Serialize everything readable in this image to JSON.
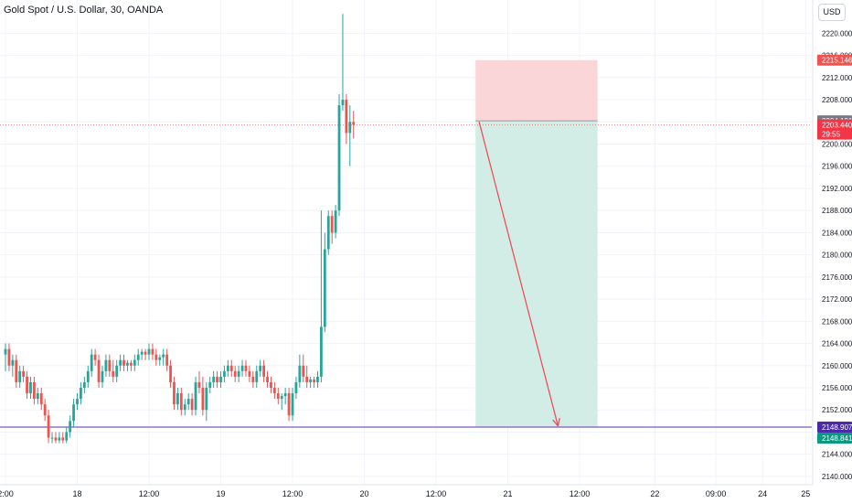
{
  "header": {
    "title": "Gold Spot / U.S. Dollar, 30, OANDA",
    "currency": "USD"
  },
  "colors": {
    "up": "#26a69a",
    "down": "#ef5350",
    "stop_zone": "#fbd6d8",
    "target_zone": "#d2ede6",
    "entry_line": "#9598a1",
    "target_line": "#7e57c2",
    "arrow": "#f0505a",
    "grid": "#f0f3fa"
  },
  "chart_data": {
    "type": "candlestick",
    "title": "Gold Spot / U.S. Dollar, 30, OANDA",
    "ylim": [
      2138.5,
      2226
    ],
    "y_ticks": [
      2140,
      2144,
      2148,
      2152,
      2156,
      2160,
      2164,
      2168,
      2172,
      2176,
      2180,
      2184,
      2188,
      2192,
      2196,
      2200,
      2204,
      2208,
      2212,
      2216,
      2220
    ],
    "y_tick_labels": [
      "2140.000",
      "2144.000",
      "2148.000",
      "2152.000",
      "2156.000",
      "2160.000",
      "2164.000",
      "2168.000",
      "2172.000",
      "2176.000",
      "2180.000",
      "2184.000",
      "2188.000",
      "2192.000",
      "2196.000",
      "2200.000",
      "2204.000",
      "2208.000",
      "2212.000",
      "2216.000",
      "2220.000"
    ],
    "x_ticks": [
      {
        "label": "2:00",
        "bar": 0
      },
      {
        "label": "18",
        "bar": 20
      },
      {
        "label": "12:00",
        "bar": 40
      },
      {
        "label": "19",
        "bar": 60
      },
      {
        "label": "12:00",
        "bar": 80
      },
      {
        "label": "20",
        "bar": 100
      },
      {
        "label": "12:00",
        "bar": 120
      },
      {
        "label": "21",
        "bar": 140
      },
      {
        "label": "12:00",
        "bar": 160
      },
      {
        "label": "22",
        "bar": 181
      },
      {
        "label": "09:00",
        "bar": 198
      },
      {
        "label": "24",
        "bar": 211
      },
      {
        "label": "25",
        "bar": 223
      }
    ],
    "candles": [
      [
        2162,
        2164,
        2159,
        2163
      ],
      [
        2163,
        2164,
        2159,
        2160
      ],
      [
        2160,
        2162,
        2158,
        2161
      ],
      [
        2161,
        2162,
        2156,
        2157
      ],
      [
        2157,
        2160,
        2156,
        2159
      ],
      [
        2159,
        2160,
        2157,
        2158
      ],
      [
        2158,
        2159,
        2154,
        2155
      ],
      [
        2155,
        2158,
        2154,
        2157
      ],
      [
        2157,
        2158,
        2153,
        2154
      ],
      [
        2154,
        2156,
        2153,
        2155
      ],
      [
        2155,
        2156,
        2152,
        2153
      ],
      [
        2153,
        2154,
        2150,
        2151
      ],
      [
        2151,
        2152,
        2146,
        2147
      ],
      [
        2147,
        2148,
        2146,
        2147
      ],
      [
        2147,
        2148,
        2146,
        2146.5
      ],
      [
        2146.5,
        2148,
        2146,
        2147
      ],
      [
        2147,
        2148,
        2146,
        2146.5
      ],
      [
        2146.5,
        2149,
        2146,
        2148
      ],
      [
        2148,
        2151,
        2147,
        2150
      ],
      [
        2150,
        2154,
        2149,
        2153
      ],
      [
        2153,
        2155,
        2152,
        2154
      ],
      [
        2154,
        2157,
        2153,
        2156
      ],
      [
        2156,
        2158,
        2155,
        2157
      ],
      [
        2157,
        2160,
        2156,
        2159
      ],
      [
        2159,
        2163,
        2158,
        2162
      ],
      [
        2162,
        2163,
        2160,
        2161
      ],
      [
        2161,
        2162,
        2156,
        2157
      ],
      [
        2157,
        2160,
        2156,
        2159
      ],
      [
        2159,
        2162,
        2158,
        2161
      ],
      [
        2161,
        2162,
        2158,
        2159
      ],
      [
        2159,
        2161,
        2157,
        2158
      ],
      [
        2158,
        2161,
        2157,
        2160
      ],
      [
        2160,
        2162,
        2159,
        2161
      ],
      [
        2161,
        2162,
        2159,
        2160
      ],
      [
        2160,
        2161,
        2159,
        2160.5
      ],
      [
        2160.5,
        2161,
        2159,
        2160
      ],
      [
        2160,
        2162,
        2159,
        2161
      ],
      [
        2161,
        2163,
        2160,
        2162
      ],
      [
        2162,
        2163,
        2161,
        2162.5
      ],
      [
        2162.5,
        2163,
        2161,
        2162
      ],
      [
        2162,
        2164,
        2161,
        2163
      ],
      [
        2163,
        2164,
        2161,
        2162
      ],
      [
        2162,
        2163,
        2160,
        2161
      ],
      [
        2161,
        2162,
        2160,
        2161.5
      ],
      [
        2161.5,
        2163,
        2160,
        2162
      ],
      [
        2162,
        2163,
        2159,
        2160
      ],
      [
        2160,
        2161,
        2156,
        2157
      ],
      [
        2157,
        2158,
        2152,
        2153
      ],
      [
        2153,
        2156,
        2152,
        2155
      ],
      [
        2155,
        2156,
        2151,
        2152
      ],
      [
        2152,
        2154,
        2151,
        2153
      ],
      [
        2153,
        2155,
        2152,
        2154
      ],
      [
        2154,
        2155,
        2151,
        2152
      ],
      [
        2152,
        2158,
        2151,
        2157
      ],
      [
        2157,
        2159,
        2155,
        2156
      ],
      [
        2156,
        2158,
        2151,
        2152
      ],
      [
        2152,
        2157,
        2150,
        2156
      ],
      [
        2156,
        2158,
        2155,
        2157
      ],
      [
        2157,
        2159,
        2156,
        2158
      ],
      [
        2158,
        2159,
        2156,
        2157
      ],
      [
        2157,
        2159,
        2156,
        2158
      ],
      [
        2158,
        2160,
        2157,
        2159
      ],
      [
        2159,
        2161,
        2158,
        2160
      ],
      [
        2160,
        2161,
        2158,
        2159
      ],
      [
        2159,
        2160,
        2157,
        2158
      ],
      [
        2158,
        2160,
        2157,
        2159
      ],
      [
        2159,
        2161,
        2158,
        2160
      ],
      [
        2160,
        2161,
        2158,
        2159
      ],
      [
        2159,
        2160,
        2157,
        2158
      ],
      [
        2158,
        2159,
        2156,
        2157
      ],
      [
        2157,
        2160,
        2156,
        2159
      ],
      [
        2159,
        2161,
        2158,
        2160
      ],
      [
        2160,
        2161,
        2157,
        2158
      ],
      [
        2158,
        2159,
        2156,
        2157
      ],
      [
        2157,
        2158,
        2155,
        2156
      ],
      [
        2156,
        2157,
        2154,
        2155
      ],
      [
        2155,
        2156,
        2153,
        2154
      ],
      [
        2154,
        2155,
        2152,
        2154.5
      ],
      [
        2154.5,
        2156,
        2153,
        2155
      ],
      [
        2155,
        2156,
        2150,
        2151
      ],
      [
        2151,
        2156,
        2150,
        2155
      ],
      [
        2155,
        2158,
        2154,
        2157
      ],
      [
        2157,
        2162,
        2156,
        2160
      ],
      [
        2160,
        2162,
        2157,
        2158
      ],
      [
        2158,
        2160,
        2156,
        2157
      ],
      [
        2157,
        2158,
        2156,
        2157.5
      ],
      [
        2157.5,
        2158,
        2156,
        2157
      ],
      [
        2157,
        2159,
        2156,
        2158
      ],
      [
        2158,
        2188,
        2157,
        2167
      ],
      [
        2167,
        2184,
        2166,
        2181
      ],
      [
        2181,
        2188,
        2180,
        2187
      ],
      [
        2187,
        2188,
        2182,
        2184
      ],
      [
        2184,
        2189,
        2183,
        2188
      ],
      [
        2188,
        2209,
        2187,
        2207
      ],
      [
        2207,
        2223.5,
        2206,
        2208
      ],
      [
        2208,
        2209,
        2200,
        2202
      ],
      [
        2202,
        2207,
        2196,
        2204
      ],
      [
        2204,
        2206,
        2201,
        2203.5
      ]
    ],
    "price_labels": {
      "stop": "2215.146",
      "entry": "2204.191",
      "last": "2203.440",
      "countdown": "29:55",
      "target": "2148.907",
      "bid": "2148.841"
    },
    "position": {
      "type": "short",
      "entry": 2204.191,
      "stop": 2215.146,
      "target": 2148.907
    }
  }
}
